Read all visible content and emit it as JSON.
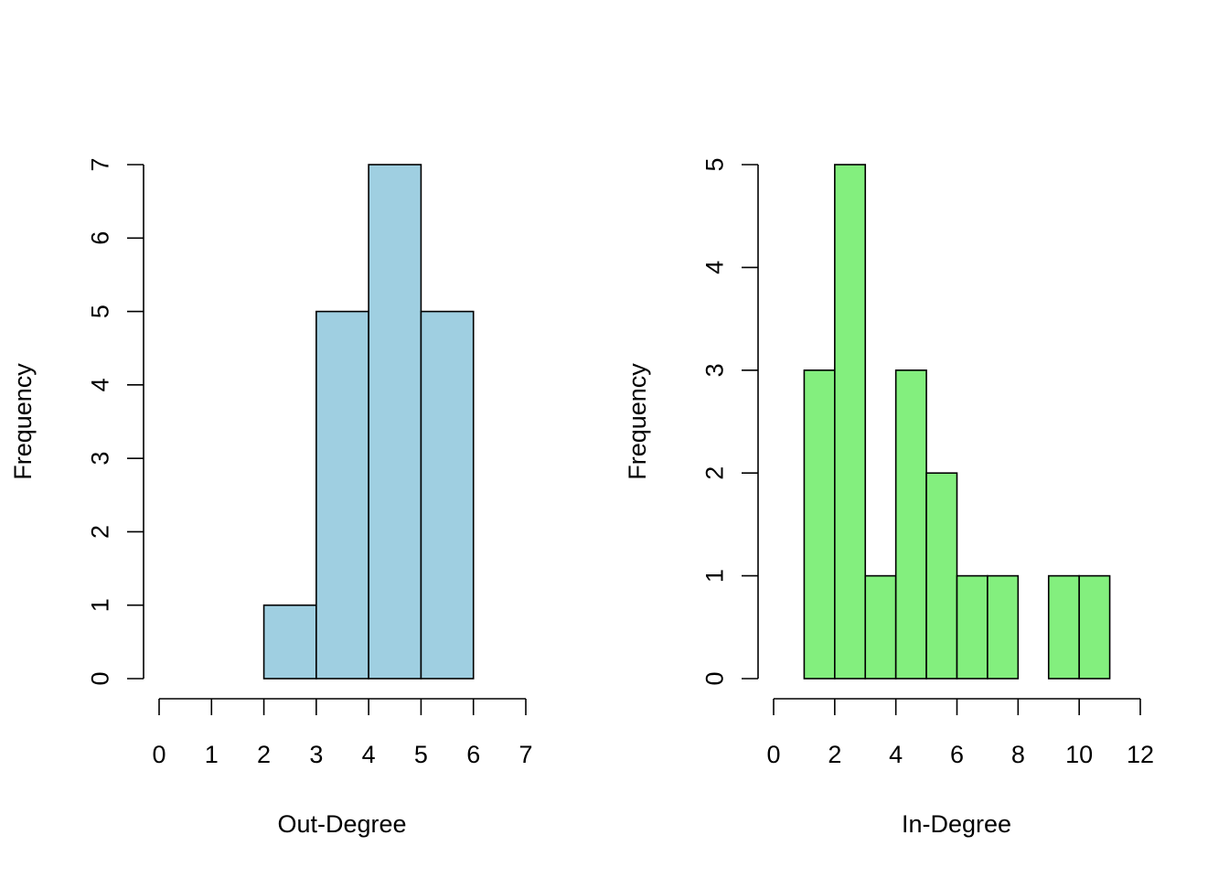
{
  "chart_data": [
    {
      "type": "bar",
      "subtype": "histogram",
      "xlabel": "Out-Degree",
      "ylabel": "Frequency",
      "bin_edges": [
        0,
        1,
        2,
        3,
        4,
        5,
        6,
        7
      ],
      "values": [
        0,
        0,
        1,
        5,
        7,
        5,
        0
      ],
      "xlim": [
        0,
        7
      ],
      "ylim": [
        0,
        7
      ],
      "xticks": [
        0,
        1,
        2,
        3,
        4,
        5,
        6,
        7
      ],
      "yticks": [
        0,
        1,
        2,
        3,
        4,
        5,
        6,
        7
      ],
      "bar_color": "#9fcfe1",
      "grid": false
    },
    {
      "type": "bar",
      "subtype": "histogram",
      "xlabel": "In-Degree",
      "ylabel": "Frequency",
      "bin_edges": [
        0,
        1,
        2,
        3,
        4,
        5,
        6,
        7,
        8,
        9,
        10,
        11,
        12
      ],
      "values": [
        0,
        3,
        5,
        1,
        3,
        2,
        1,
        1,
        0,
        1,
        1,
        0
      ],
      "xlim": [
        0,
        12
      ],
      "ylim": [
        0,
        5
      ],
      "xticks": [
        0,
        2,
        4,
        6,
        8,
        10,
        12
      ],
      "yticks": [
        0,
        1,
        2,
        3,
        4,
        5
      ],
      "bar_color": "#83ef7e",
      "grid": false
    }
  ]
}
